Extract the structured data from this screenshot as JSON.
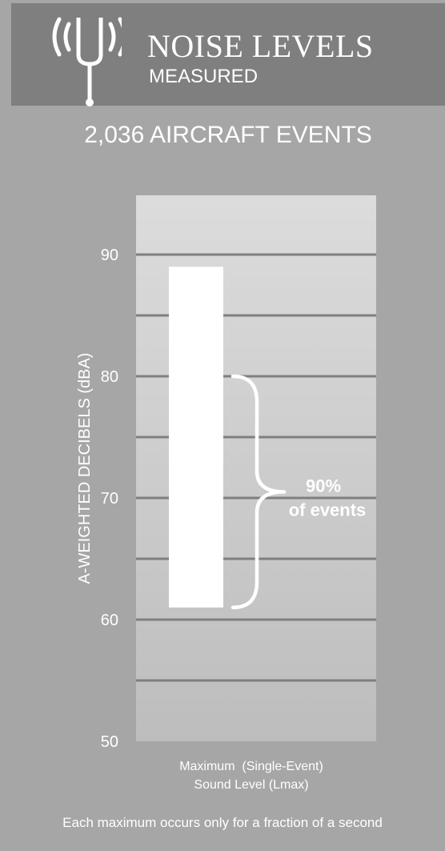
{
  "header": {
    "title": "NOISE LEVELS",
    "subtitle": "MEASURED",
    "icon": "tuning-fork-broadcast-icon"
  },
  "events_count": "2,036 AIRCRAFT EVENTS",
  "footnote": "Each maximum occurs only for a fraction of a second",
  "colors": {
    "page_background": "#a6a6a6",
    "header_background": "#7f7f7f",
    "bar": "#ffffff",
    "gridline": "#7f7f7f",
    "text": "#ffffff"
  },
  "chart_data": {
    "type": "bar",
    "ylabel": "A-WEIGHTED DECIBELS (dBA)",
    "ylim": [
      50,
      95
    ],
    "yticks": [
      50,
      60,
      70,
      80,
      90
    ],
    "gridlines": [
      55,
      60,
      65,
      70,
      75,
      80,
      85,
      90
    ],
    "categories": [
      "Maximum  (Single-Event)",
      "Sound Level (Lmax)"
    ],
    "bars": [
      {
        "low": 61,
        "high": 89
      }
    ],
    "grid": true,
    "annotation": {
      "range": [
        61,
        80
      ],
      "line1": "90%",
      "line2": "of events"
    }
  }
}
